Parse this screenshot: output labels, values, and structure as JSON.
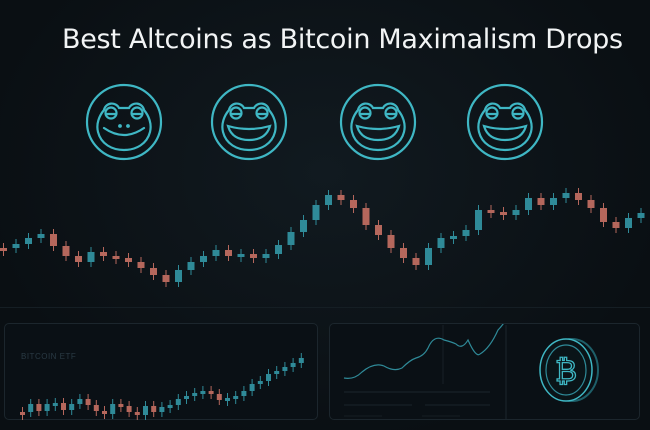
{
  "title": "Best Altcoins as Bitcoin Maximalism Drops",
  "icons": [
    "frog-face-icon",
    "frog-face-icon",
    "frog-face-icon",
    "frog-face-icon",
    "bitcoin-coin-icon"
  ],
  "panels": {
    "left_label": "BITCOIN ETF"
  },
  "colors": {
    "accent": "#3fb7c4",
    "bull": "#2f8a98",
    "bear": "#b5675c",
    "background": "#0b1116"
  }
}
